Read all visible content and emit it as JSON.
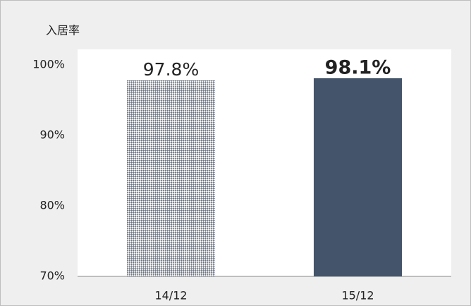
{
  "chart_data": {
    "type": "bar",
    "ylabel": "入居率",
    "categories": [
      "14/12",
      "15/12"
    ],
    "values": [
      97.8,
      98.1
    ],
    "value_labels": [
      "97.8%",
      "98.1%"
    ],
    "colors": [
      "#6d7482",
      "#44546a"
    ],
    "bar_fills": [
      "pattern",
      "solid"
    ],
    "value_label_bold": [
      false,
      true
    ],
    "ylim": [
      70,
      100
    ],
    "yticks": [
      {
        "value": 70,
        "label": "70%"
      },
      {
        "value": 80,
        "label": "80%"
      },
      {
        "value": 90,
        "label": "90%"
      },
      {
        "value": 100,
        "label": "100%"
      }
    ],
    "grid": false
  }
}
